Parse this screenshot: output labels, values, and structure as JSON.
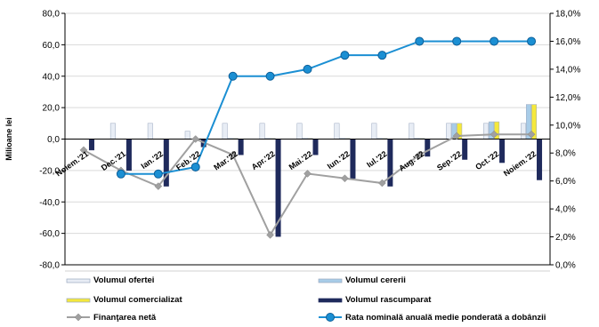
{
  "chart_data": {
    "type": "bar",
    "ylabel": "Milioane lei",
    "ylim": [
      -80,
      80
    ],
    "y_ticks": [
      "80,0",
      "60,0",
      "40,0",
      "20,0",
      "0,0",
      "-20,0",
      "-40,0",
      "-60,0",
      "-80,0"
    ],
    "y2lim": [
      0,
      18
    ],
    "y2_ticks": [
      "18,0%",
      "16,0%",
      "14,0%",
      "12,0%",
      "10,0%",
      "8,0%",
      "6,0%",
      "4,0%",
      "2,0%",
      "0,0%"
    ],
    "categories": [
      "Noiem.'21",
      "Dec.'21",
      "Ian.'22",
      "Feb.'22",
      "Mar.'22",
      "Apr.'22",
      "Mai.'22",
      "Iun.'22",
      "Iul.'22",
      "Aug.'22",
      "Sep.'22",
      "Oct.'22",
      "Noiem.'22"
    ],
    "series": [
      {
        "name": "Volumul ofertei",
        "type": "bar",
        "color": "#e8edf5",
        "values": [
          0,
          10,
          10,
          5,
          10,
          10,
          10,
          10,
          10,
          10,
          10,
          10,
          10
        ]
      },
      {
        "name": "Volumul cererii",
        "type": "bar",
        "color": "#a8cce8",
        "values": [
          0,
          0,
          0,
          0,
          0.5,
          0.5,
          0.5,
          0.5,
          0.5,
          0.5,
          10,
          11,
          22
        ]
      },
      {
        "name": "Volumul comercializat",
        "type": "bar",
        "color": "#f5e83c",
        "values": [
          0,
          0,
          0,
          0,
          0.5,
          0.5,
          0.5,
          0.5,
          0.5,
          0.5,
          10,
          11,
          22
        ]
      },
      {
        "name": "Volumul rascumparat",
        "type": "bar",
        "color": "#1f2a5c",
        "values": [
          -7,
          -20,
          -30,
          -5,
          -10,
          -62,
          -10,
          -25,
          -30,
          -11,
          -13,
          -15,
          -26
        ]
      },
      {
        "name": "Finanţarea netă",
        "type": "line",
        "axis": "left",
        "color": "#a0a0a0",
        "values": [
          -7,
          -20,
          -30,
          0,
          -10,
          -61,
          -22,
          -25,
          -28,
          -10,
          2,
          3,
          3
        ]
      },
      {
        "name": "Rata nominală anuală medie ponderată a dobânzii",
        "type": "line",
        "axis": "right",
        "color": "#1b8fd3",
        "values": [
          null,
          6.5,
          6.5,
          7.0,
          13.5,
          13.5,
          14.0,
          15.0,
          15.0,
          16.0,
          16.0,
          16.0,
          16.0
        ]
      }
    ],
    "legend_position": "bottom",
    "grid": true
  }
}
